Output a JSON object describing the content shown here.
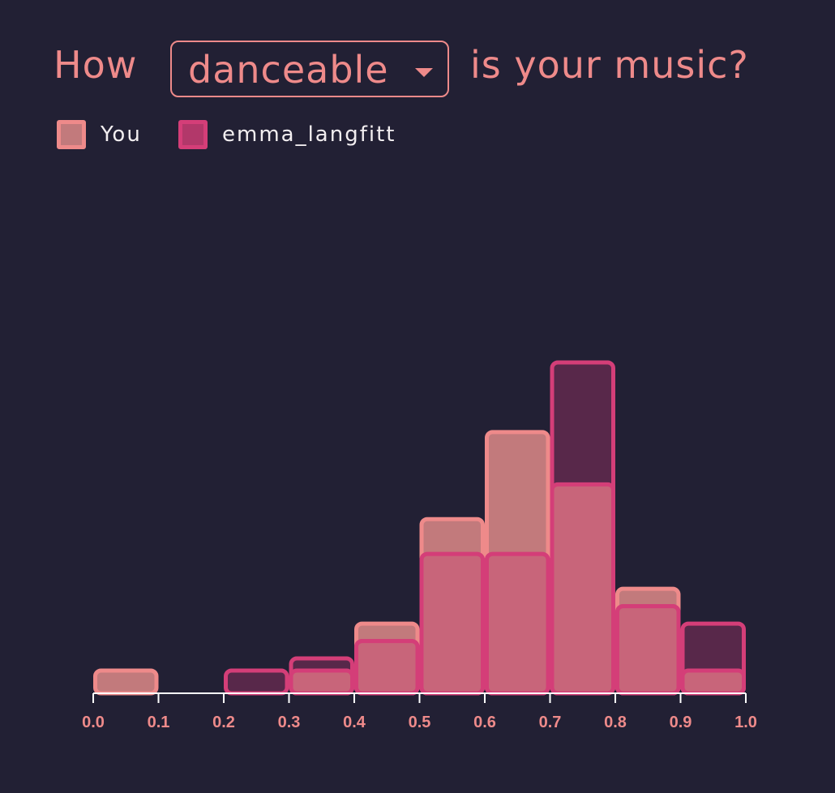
{
  "header": {
    "prefix": "How",
    "selected_metric": "danceable",
    "suffix": "is your music?"
  },
  "legend": {
    "items": [
      {
        "label": "You"
      },
      {
        "label": "emma_langfitt"
      }
    ]
  },
  "colors": {
    "background": "#222034",
    "accent": "#ee8a8a",
    "you_fill": "#c27a7c",
    "you_stroke": "#ee8a8a",
    "other_fill": "#58284a",
    "other_stroke": "#d43e78",
    "overlap_fill": "#c8657a"
  },
  "chart_data": {
    "type": "bar",
    "bin_edges": [
      0.0,
      0.1,
      0.2,
      0.3,
      0.4,
      0.5,
      0.6,
      0.7,
      0.8,
      0.9,
      1.0
    ],
    "tick_labels": [
      "0.0",
      "0.1",
      "0.2",
      "0.3",
      "0.4",
      "0.5",
      "0.6",
      "0.7",
      "0.8",
      "0.9",
      "1.0"
    ],
    "series": [
      {
        "name": "You",
        "values": [
          1,
          0,
          0,
          1,
          4,
          10,
          15,
          12,
          6,
          1
        ]
      },
      {
        "name": "emma_langfitt",
        "values": [
          0,
          0,
          1,
          2,
          3,
          8,
          8,
          19,
          5,
          4
        ]
      }
    ],
    "ylim": [
      0,
      19
    ],
    "grid": false,
    "legend_position": "top-left"
  }
}
